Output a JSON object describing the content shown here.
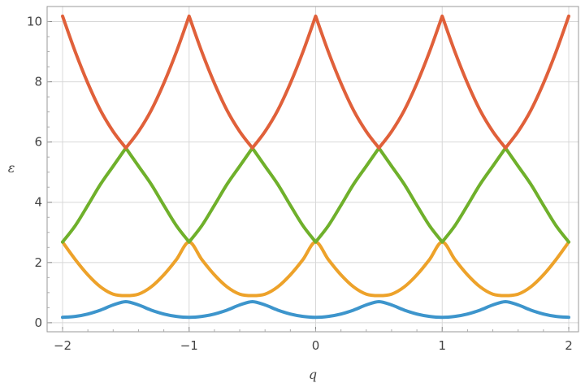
{
  "chart_data": {
    "type": "line",
    "title": "",
    "xlabel": "q",
    "ylabel": "ε",
    "xlim": [
      -2,
      2
    ],
    "ylim": [
      -0.3,
      10.5
    ],
    "x_ticks": [
      -2,
      -1,
      0,
      1,
      2
    ],
    "x_tick_labels": [
      "−2",
      "−1",
      "0",
      "1",
      "2"
    ],
    "y_ticks": [
      0,
      2,
      4,
      6,
      8,
      10
    ],
    "y_tick_labels": [
      "0",
      "2",
      "4",
      "6",
      "8",
      "10"
    ],
    "grid": true,
    "legend": "none",
    "series": [
      {
        "color": "#3d95cc",
        "x": [
          0,
          0.1,
          0.2,
          0.3,
          0.4,
          0.5,
          0.6,
          0.7,
          0.8,
          0.9,
          1.0
        ],
        "y": [
          0.18,
          0.21,
          0.29,
          0.42,
          0.59,
          0.7,
          0.59,
          0.42,
          0.29,
          0.21,
          0.18
        ]
      },
      {
        "color": "#eda22a",
        "x": [
          0,
          0.1,
          0.2,
          0.3,
          0.4,
          0.5,
          0.6,
          0.7,
          0.8,
          0.9,
          1.0
        ],
        "y": [
          2.68,
          2.1,
          1.59,
          1.19,
          0.95,
          0.9,
          0.95,
          1.19,
          1.59,
          2.1,
          2.68
        ]
      },
      {
        "color": "#6fb02b",
        "x": [
          0,
          0.1,
          0.2,
          0.3,
          0.4,
          0.5,
          0.6,
          0.7,
          0.8,
          0.9,
          1.0
        ],
        "y": [
          2.68,
          3.22,
          3.9,
          4.6,
          5.2,
          5.8,
          5.2,
          4.6,
          3.9,
          3.22,
          2.68
        ]
      },
      {
        "color": "#e0603a",
        "x": [
          0,
          0.1,
          0.2,
          0.3,
          0.4,
          0.5,
          0.6,
          0.7,
          0.8,
          0.9,
          1.0
        ],
        "y": [
          10.18,
          9.0,
          7.95,
          7.05,
          6.35,
          5.8,
          6.35,
          7.05,
          7.95,
          9.0,
          10.18
        ]
      }
    ]
  }
}
